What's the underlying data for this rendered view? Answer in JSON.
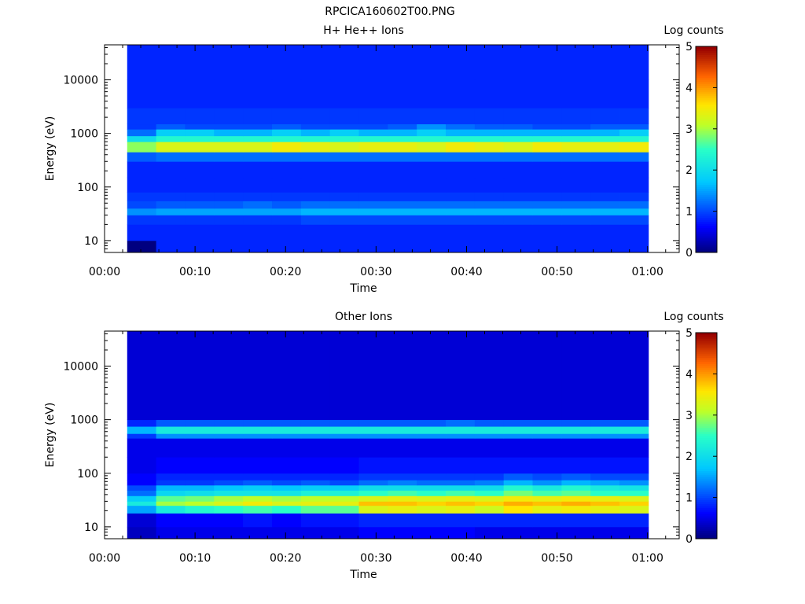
{
  "figure_title": "RPCICA160602T00.PNG",
  "chart_data": [
    {
      "type": "heatmap",
      "title": "H+ He++ Ions",
      "xlabel": "Time",
      "ylabel": "Energy (eV)",
      "colorbar_label": "Log counts",
      "x_tick_labels": [
        "00:00",
        "00:10",
        "00:20",
        "00:30",
        "00:40",
        "00:50",
        "01:00"
      ],
      "x_ticks_minutes": [
        0,
        10,
        20,
        30,
        40,
        50,
        60
      ],
      "xlim_minutes": [
        0,
        63.5
      ],
      "y_scale": "log",
      "y_tick_labels": [
        "10",
        "100",
        "1000",
        "10000"
      ],
      "y_ticks": [
        10,
        100,
        1000,
        10000
      ],
      "ylim": [
        6,
        45000
      ],
      "colorbar_ticks": [
        "0",
        "1",
        "2",
        "3",
        "4",
        "5"
      ],
      "clim": [
        0,
        5
      ],
      "time_bins_minutes": [
        2.5,
        5.7,
        8.9,
        12.1,
        15.3,
        18.5,
        21.7,
        24.9,
        28.1,
        31.3,
        34.5,
        37.7,
        40.9,
        44.1,
        47.3,
        50.5,
        53.7,
        56.9,
        60.1
      ],
      "energy_bins_eV": [
        6,
        10,
        20,
        30,
        40,
        55,
        80,
        150,
        300,
        450,
        700,
        900,
        1200,
        1500,
        3000,
        10000,
        45000
      ],
      "log_counts": [
        [
          0.0,
          0.8,
          0.8,
          0.8,
          0.8,
          0.8,
          0.8,
          0.8,
          0.8,
          0.8,
          0.8,
          0.8,
          0.8,
          0.8,
          0.8,
          0.8,
          0.8,
          0.8
        ],
        [
          0.8,
          0.8,
          0.8,
          0.8,
          0.8,
          0.8,
          0.8,
          0.8,
          0.8,
          0.8,
          0.8,
          0.8,
          0.8,
          0.8,
          0.8,
          0.8,
          0.8,
          0.8
        ],
        [
          0.9,
          0.9,
          0.9,
          0.9,
          0.9,
          0.9,
          1.0,
          1.0,
          1.0,
          1.0,
          1.0,
          1.0,
          1.0,
          1.0,
          1.0,
          1.0,
          1.0,
          1.0
        ],
        [
          1.4,
          1.5,
          1.5,
          1.5,
          1.5,
          1.5,
          1.6,
          1.6,
          1.6,
          1.6,
          1.6,
          1.6,
          1.6,
          1.6,
          1.6,
          1.6,
          1.6,
          1.6
        ],
        [
          1.0,
          1.1,
          1.1,
          1.1,
          1.2,
          1.1,
          1.2,
          1.2,
          1.2,
          1.2,
          1.2,
          1.2,
          1.2,
          1.2,
          1.2,
          1.2,
          1.2,
          1.2
        ],
        [
          0.9,
          0.9,
          0.9,
          0.9,
          0.9,
          0.9,
          0.9,
          0.9,
          0.9,
          0.9,
          0.9,
          0.9,
          0.9,
          0.9,
          0.9,
          0.9,
          0.9,
          0.9
        ],
        [
          0.8,
          0.8,
          0.8,
          0.8,
          0.8,
          0.8,
          0.8,
          0.8,
          0.8,
          0.8,
          0.8,
          0.8,
          0.8,
          0.8,
          0.8,
          0.8,
          0.8,
          0.8
        ],
        [
          0.8,
          0.8,
          0.8,
          0.8,
          0.8,
          0.8,
          0.8,
          0.8,
          0.8,
          0.8,
          0.8,
          0.8,
          0.8,
          0.8,
          0.8,
          0.8,
          0.8,
          0.8
        ],
        [
          1.1,
          1.2,
          1.2,
          1.2,
          1.2,
          1.2,
          1.2,
          1.2,
          1.2,
          1.2,
          1.2,
          1.2,
          1.2,
          1.2,
          1.2,
          1.2,
          1.2,
          1.2
        ],
        [
          2.9,
          3.3,
          3.3,
          3.3,
          3.3,
          3.5,
          3.4,
          3.3,
          3.4,
          3.4,
          3.3,
          3.5,
          3.4,
          3.3,
          3.5,
          3.4,
          3.4,
          3.5
        ],
        [
          2.0,
          2.4,
          2.4,
          2.4,
          2.4,
          2.4,
          2.4,
          2.4,
          2.4,
          2.4,
          2.4,
          2.4,
          2.4,
          2.4,
          2.4,
          2.4,
          2.4,
          2.4
        ],
        [
          1.2,
          1.8,
          1.8,
          1.6,
          1.6,
          1.8,
          1.6,
          1.8,
          1.6,
          1.6,
          1.8,
          1.6,
          1.6,
          1.6,
          1.6,
          1.6,
          1.6,
          1.8
        ],
        [
          0.9,
          1.1,
          1.0,
          1.0,
          1.0,
          1.1,
          1.0,
          1.0,
          1.0,
          1.1,
          1.4,
          1.2,
          1.1,
          1.1,
          1.0,
          1.0,
          1.1,
          1.1
        ],
        [
          0.9,
          0.9,
          0.9,
          0.9,
          0.9,
          0.9,
          0.9,
          0.9,
          0.9,
          0.9,
          0.9,
          0.9,
          0.9,
          0.9,
          0.9,
          0.9,
          0.9,
          0.9
        ],
        [
          0.8,
          0.8,
          0.8,
          0.8,
          0.8,
          0.8,
          0.8,
          0.8,
          0.8,
          0.8,
          0.8,
          0.8,
          0.8,
          0.8,
          0.8,
          0.8,
          0.8,
          0.8
        ],
        [
          0.8,
          0.8,
          0.8,
          0.8,
          0.8,
          0.8,
          0.8,
          0.8,
          0.8,
          0.8,
          0.8,
          0.8,
          0.8,
          0.8,
          0.8,
          0.8,
          0.8,
          0.8
        ]
      ]
    },
    {
      "type": "heatmap",
      "title": "Other Ions",
      "xlabel": "Time",
      "ylabel": "Energy (eV)",
      "colorbar_label": "Log counts",
      "x_tick_labels": [
        "00:00",
        "00:10",
        "00:20",
        "00:30",
        "00:40",
        "00:50",
        "01:00"
      ],
      "x_ticks_minutes": [
        0,
        10,
        20,
        30,
        40,
        50,
        60
      ],
      "xlim_minutes": [
        0,
        63.5
      ],
      "y_scale": "log",
      "y_tick_labels": [
        "10",
        "100",
        "1000",
        "10000"
      ],
      "y_ticks": [
        10,
        100,
        1000,
        10000
      ],
      "ylim": [
        6,
        45000
      ],
      "colorbar_ticks": [
        "0",
        "1",
        "2",
        "3",
        "4",
        "5"
      ],
      "clim": [
        0,
        5
      ],
      "time_bins_minutes": [
        2.5,
        5.7,
        8.9,
        12.1,
        15.3,
        18.5,
        21.7,
        24.9,
        28.1,
        31.3,
        34.5,
        37.7,
        40.9,
        44.1,
        47.3,
        50.5,
        53.7,
        56.9,
        60.1
      ],
      "energy_bins_eV": [
        6,
        10,
        18,
        25,
        30,
        38,
        48,
        60,
        75,
        100,
        200,
        450,
        550,
        750,
        1000,
        45000
      ],
      "log_counts": [
        [
          0.3,
          0.5,
          0.5,
          0.5,
          0.5,
          0.5,
          0.5,
          0.5,
          0.6,
          0.6,
          0.6,
          0.6,
          0.5,
          0.5,
          0.5,
          0.5,
          0.5,
          0.5
        ],
        [
          0.4,
          0.6,
          0.6,
          0.6,
          0.7,
          0.6,
          0.7,
          0.7,
          0.8,
          0.8,
          0.8,
          0.8,
          0.8,
          0.8,
          0.8,
          0.8,
          0.8,
          0.8
        ],
        [
          1.5,
          2.2,
          2.4,
          2.5,
          2.6,
          2.5,
          2.7,
          2.7,
          3.3,
          3.4,
          3.3,
          3.4,
          3.2,
          3.6,
          3.4,
          3.5,
          3.4,
          3.3
        ],
        [
          2.2,
          3.0,
          3.1,
          3.3,
          3.5,
          3.3,
          3.4,
          3.4,
          3.8,
          3.8,
          3.7,
          3.8,
          3.7,
          3.9,
          3.8,
          3.9,
          3.8,
          3.7
        ],
        [
          1.8,
          2.7,
          2.8,
          3.0,
          3.1,
          3.0,
          3.1,
          3.1,
          3.3,
          3.4,
          3.3,
          3.4,
          3.3,
          3.5,
          3.4,
          3.5,
          3.4,
          3.3
        ],
        [
          1.2,
          1.9,
          2.0,
          2.1,
          2.1,
          2.1,
          2.3,
          2.3,
          2.5,
          2.6,
          2.5,
          2.6,
          2.5,
          2.8,
          2.6,
          2.7,
          2.5,
          2.5
        ],
        [
          1.0,
          1.6,
          1.6,
          1.7,
          1.8,
          1.7,
          1.8,
          1.8,
          2.0,
          2.0,
          2.0,
          2.0,
          2.0,
          2.4,
          2.2,
          2.4,
          2.2,
          2.1
        ],
        [
          0.6,
          0.9,
          0.9,
          1.0,
          1.1,
          1.0,
          1.1,
          1.0,
          1.2,
          1.3,
          1.2,
          1.2,
          1.3,
          1.6,
          1.4,
          1.6,
          1.5,
          1.4
        ],
        [
          0.6,
          0.8,
          0.8,
          0.8,
          0.8,
          0.8,
          0.8,
          0.8,
          0.9,
          0.9,
          0.9,
          0.9,
          0.9,
          1.1,
          1.0,
          1.1,
          1.0,
          1.0
        ],
        [
          0.5,
          0.6,
          0.6,
          0.6,
          0.6,
          0.6,
          0.6,
          0.6,
          0.7,
          0.7,
          0.7,
          0.7,
          0.7,
          0.7,
          0.7,
          0.7,
          0.7,
          0.7
        ],
        [
          0.5,
          0.5,
          0.5,
          0.5,
          0.5,
          0.5,
          0.5,
          0.5,
          0.5,
          0.5,
          0.5,
          0.5,
          0.5,
          0.5,
          0.5,
          0.5,
          0.5,
          0.5
        ],
        [
          0.9,
          1.4,
          1.4,
          1.4,
          1.4,
          1.4,
          1.4,
          1.4,
          1.4,
          1.4,
          1.4,
          1.4,
          1.4,
          1.4,
          1.4,
          1.4,
          1.4,
          1.4
        ],
        [
          1.6,
          2.2,
          2.2,
          2.2,
          2.2,
          2.2,
          2.2,
          2.2,
          2.2,
          2.2,
          2.2,
          2.2,
          2.2,
          2.2,
          2.2,
          2.2,
          2.2,
          2.2
        ],
        [
          0.8,
          1.1,
          1.1,
          1.1,
          1.1,
          1.1,
          1.1,
          1.1,
          1.1,
          1.1,
          1.1,
          1.2,
          1.1,
          1.1,
          1.1,
          1.1,
          1.1,
          1.1
        ],
        [
          0.4,
          0.4,
          0.4,
          0.4,
          0.4,
          0.4,
          0.4,
          0.4,
          0.4,
          0.4,
          0.4,
          0.4,
          0.4,
          0.4,
          0.4,
          0.4,
          0.4,
          0.4
        ]
      ]
    }
  ]
}
